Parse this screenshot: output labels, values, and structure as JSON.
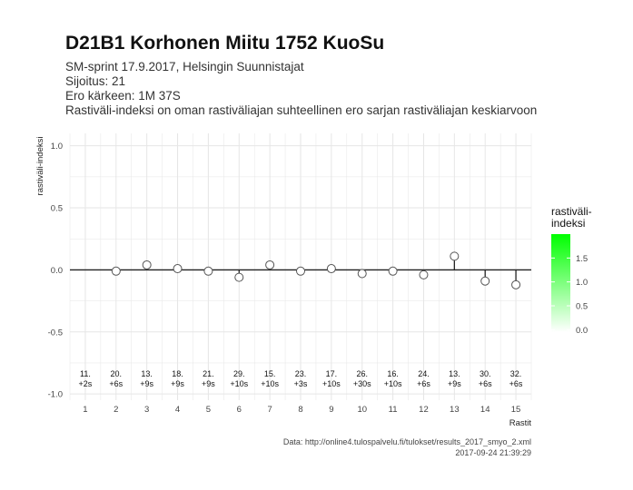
{
  "chart_data": {
    "type": "scatter",
    "title": "D21B1 Korhonen Miitu 1752 KuoSu",
    "subtitle_lines": [
      "SM-sprint 17.9.2017, Helsingin Suunnistajat",
      "Sijoitus: 21",
      "Ero kärkeen: 1M 37S",
      "Rastiväli-indeksi on oman rastiväliajan suhteellinen ero sarjan rastiväliajan keskiarvoon"
    ],
    "xlabel": "Rastit",
    "ylabel": "rastiväli-indeksi",
    "xlim": [
      0.5,
      15.5
    ],
    "ylim": [
      -1.05,
      1.1
    ],
    "x_ticks": [
      1,
      2,
      3,
      4,
      5,
      6,
      7,
      8,
      9,
      10,
      11,
      12,
      13,
      14,
      15
    ],
    "y_ticks": [
      {
        "value": 1.0,
        "label": "1.0"
      },
      {
        "value": 0.5,
        "label": "0.5"
      },
      {
        "value": 0.0,
        "label": "0.0"
      },
      {
        "value": -0.5,
        "label": "-0.5"
      },
      {
        "value": -1.0,
        "label": "-1.0"
      }
    ],
    "grid": true,
    "points": [
      {
        "x": 1,
        "y": null,
        "rank": "11.",
        "diff": "+2s"
      },
      {
        "x": 2,
        "y": -0.01,
        "rank": "20.",
        "diff": "+6s"
      },
      {
        "x": 3,
        "y": 0.04,
        "rank": "13.",
        "diff": "+9s"
      },
      {
        "x": 4,
        "y": 0.01,
        "rank": "18.",
        "diff": "+9s"
      },
      {
        "x": 5,
        "y": -0.01,
        "rank": "21.",
        "diff": "+9s"
      },
      {
        "x": 6,
        "y": -0.06,
        "rank": "29.",
        "diff": "+10s"
      },
      {
        "x": 7,
        "y": 0.04,
        "rank": "15.",
        "diff": "+10s"
      },
      {
        "x": 8,
        "y": -0.01,
        "rank": "23.",
        "diff": "+3s"
      },
      {
        "x": 9,
        "y": 0.01,
        "rank": "17.",
        "diff": "+10s"
      },
      {
        "x": 10,
        "y": -0.03,
        "rank": "26.",
        "diff": "+30s"
      },
      {
        "x": 11,
        "y": -0.01,
        "rank": "16.",
        "diff": "+10s"
      },
      {
        "x": 12,
        "y": -0.04,
        "rank": "24.",
        "diff": "+6s"
      },
      {
        "x": 13,
        "y": 0.11,
        "rank": "13.",
        "diff": "+9s"
      },
      {
        "x": 14,
        "y": -0.09,
        "rank": "30.",
        "diff": "+6s"
      },
      {
        "x": 15,
        "y": -0.12,
        "rank": "32.",
        "diff": "+6s"
      }
    ],
    "legend": {
      "title_lines": [
        "rastiväli-",
        "indeksi"
      ],
      "position": "right",
      "low_color": "#ffffff",
      "high_color": "#00ff00",
      "min": -0.05,
      "max": 2.0,
      "ticks": [
        {
          "value": 1.5,
          "label": "1.5"
        },
        {
          "value": 1.0,
          "label": "1.0"
        },
        {
          "value": 0.5,
          "label": "0.5"
        },
        {
          "value": 0.0,
          "label": "0.0"
        }
      ]
    },
    "caption_lines": [
      "Data: http://online4.tulospalvelu.fi/tulokset/results_2017_smyo_2.xml",
      "2017-09-24 21:39:29"
    ],
    "colors": {
      "grid": "#e6e6e6",
      "zero_line": "#222222",
      "point_stroke": "#555555",
      "point_fill": "#ffffff"
    }
  }
}
